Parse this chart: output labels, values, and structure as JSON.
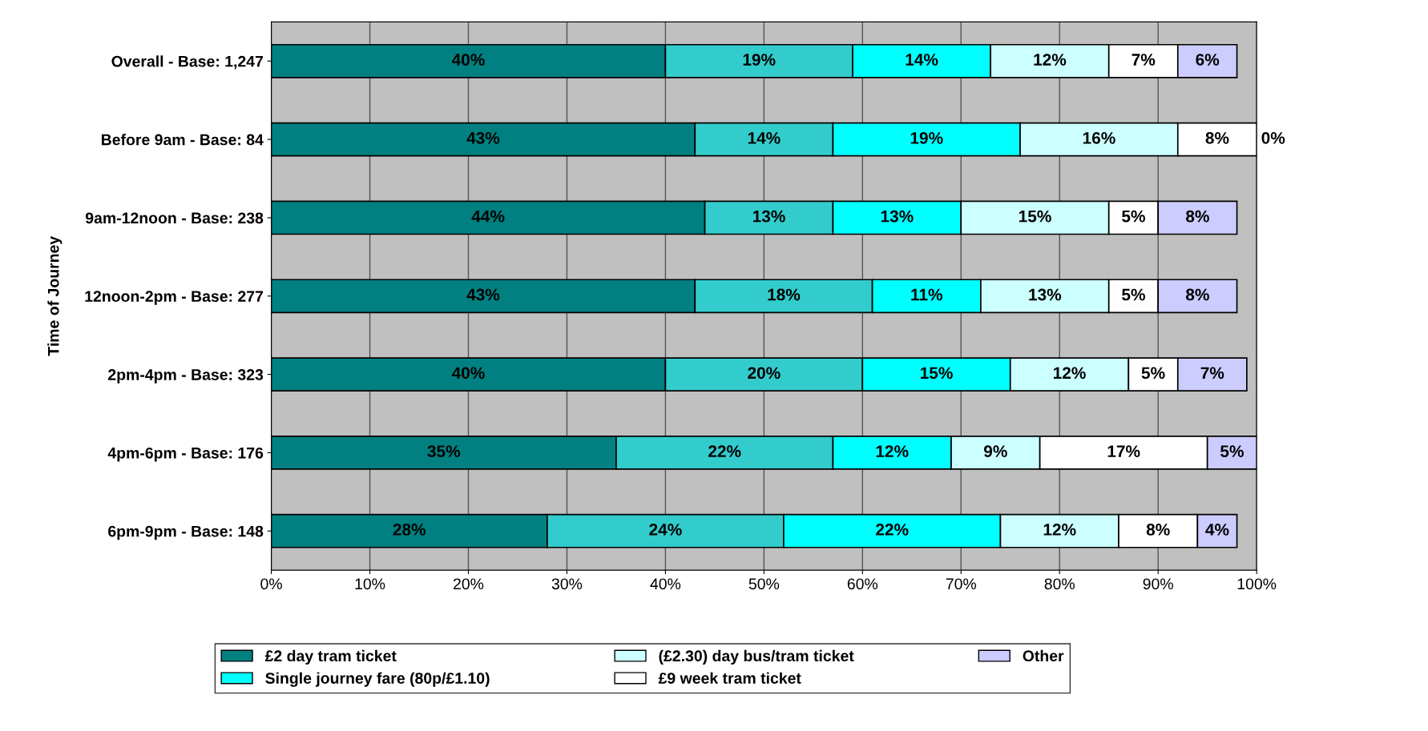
{
  "chart_data": {
    "type": "bar",
    "orientation": "horizontal",
    "stacked": true,
    "ylabel": "Time of Journey",
    "categories": [
      "Overall - Base: 1,247",
      "Before 9am - Base: 84",
      "9am-12noon - Base: 238",
      "12noon-2pm - Base: 277",
      "2pm-4pm - Base: 323",
      "4pm-6pm - Base: 176",
      "6pm-9pm - Base: 148"
    ],
    "series": [
      {
        "name": "£2 day tram ticket",
        "color": "#008080",
        "values": [
          40,
          43,
          44,
          43,
          40,
          35,
          28
        ],
        "value_labels": [
          "40%",
          "43%",
          "44%",
          "43%",
          "40%",
          "35%",
          "28%"
        ]
      },
      {
        "color": "#33cccc",
        "values": [
          19,
          14,
          13,
          18,
          20,
          22,
          24
        ],
        "value_labels": [
          "19%",
          "14%",
          "13%",
          "18%",
          "20%",
          "22%",
          "24%"
        ]
      },
      {
        "name": "Single journey fare (80p/£1.10)",
        "color": "#00ffff",
        "values": [
          14,
          19,
          13,
          11,
          15,
          12,
          22
        ],
        "value_labels": [
          "14%",
          "19%",
          "13%",
          "11%",
          "15%",
          "12%",
          "22%"
        ]
      },
      {
        "name": "(£2.30) day bus/tram ticket",
        "color": "#ccffff",
        "values": [
          12,
          16,
          15,
          13,
          12,
          9,
          12
        ],
        "value_labels": [
          "12%",
          "16%",
          "15%",
          "13%",
          "12%",
          "9%",
          "12%"
        ]
      },
      {
        "name": "£9 week tram ticket",
        "color": "#ffffff",
        "values": [
          7,
          8,
          5,
          5,
          5,
          17,
          8
        ],
        "value_labels": [
          "7%",
          "8%",
          "5%",
          "5%",
          "5%",
          "17%",
          "8%"
        ]
      },
      {
        "name": "Other",
        "color": "#ccccff",
        "values": [
          6,
          0,
          8,
          8,
          7,
          5,
          4
        ],
        "value_labels": [
          "6%",
          "0%",
          "8%",
          "8%",
          "7%",
          "5%",
          "4%"
        ]
      }
    ],
    "xlim": [
      0,
      100
    ],
    "xticks": [
      {
        "value": 0,
        "label": "0%"
      },
      {
        "value": 10,
        "label": "10%"
      },
      {
        "value": 20,
        "label": "20%"
      },
      {
        "value": 30,
        "label": "30%"
      },
      {
        "value": 40,
        "label": "40%"
      },
      {
        "value": 50,
        "label": "50%"
      },
      {
        "value": 60,
        "label": "60%"
      },
      {
        "value": 70,
        "label": "70%"
      },
      {
        "value": 80,
        "label": "80%"
      },
      {
        "value": 90,
        "label": "90%"
      },
      {
        "value": 100,
        "label": "100%"
      }
    ],
    "grid": "x",
    "legend": "bottom"
  }
}
